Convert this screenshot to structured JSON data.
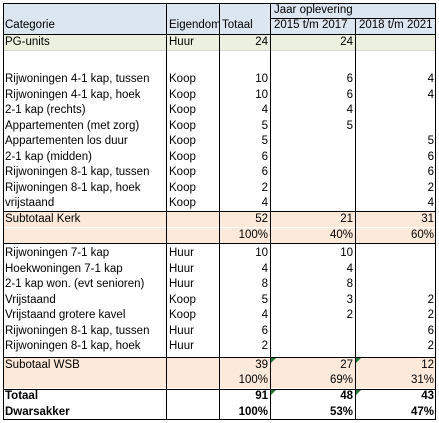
{
  "header": {
    "col_categorie": "Categorie",
    "col_eigendom": "Eigendom",
    "col_totaal": "Totaal",
    "group_label": "Jaar oplevering",
    "col_y1": "2015 t/m 2017",
    "col_y2": "2018 t/m 2021"
  },
  "pg_row": {
    "cat": "PG-units",
    "eig": "Huur",
    "tot": "24",
    "y1": "24",
    "y2": ""
  },
  "kerk_rows": [
    {
      "cat": "Rijwoningen 4-1 kap, tussen",
      "eig": "Koop",
      "tot": "10",
      "y1": "6",
      "y2": "4"
    },
    {
      "cat": "Rijwoningen 4-1 kap,  hoek",
      "eig": "Koop",
      "tot": "10",
      "y1": "6",
      "y2": "4"
    },
    {
      "cat": "2-1 kap (rechts)",
      "eig": "Koop",
      "tot": "4",
      "y1": "4",
      "y2": ""
    },
    {
      "cat": "Appartementen (met zorg)",
      "eig": "Koop",
      "tot": "5",
      "y1": "5",
      "y2": ""
    },
    {
      "cat": "Appartementen los  duur",
      "eig": "Koop",
      "tot": "5",
      "y1": "",
      "y2": "5"
    },
    {
      "cat": "2-1 kap (midden)",
      "eig": "Koop",
      "tot": "6",
      "y1": "",
      "y2": "6"
    },
    {
      "cat": "Rijwoningen 8-1 kap, tussen",
      "eig": "Koop",
      "tot": "6",
      "y1": "",
      "y2": "6"
    },
    {
      "cat": "Rijwoningen 8-1 kap, hoek",
      "eig": "Koop",
      "tot": "2",
      "y1": "",
      "y2": "2"
    },
    {
      "cat": "vrijstaand",
      "eig": "Koop",
      "tot": "4",
      "y1": "",
      "y2": "4"
    }
  ],
  "sub_kerk": {
    "cat": "Subtotaal Kerk",
    "tot": "52",
    "y1": "21",
    "y2": "31",
    "tot_pct": "100%",
    "y1_pct": "40%",
    "y2_pct": "60%"
  },
  "wsb_rows": [
    {
      "cat": "Rijwoningen 7-1 kap",
      "eig": "Huur",
      "tot": "10",
      "y1": "10",
      "y2": ""
    },
    {
      "cat": "Hoekwoningen 7-1 kap",
      "eig": "Huur",
      "tot": "4",
      "y1": "4",
      "y2": ""
    },
    {
      "cat": "2-1 kap  won. (evt senioren)",
      "eig": "Huur",
      "tot": "8",
      "y1": "8",
      "y2": ""
    },
    {
      "cat": "Vrijstaand",
      "eig": "Koop",
      "tot": "5",
      "y1": "3",
      "y2": "2"
    },
    {
      "cat": "Vrijstaand grotere kavel",
      "eig": "Koop",
      "tot": "4",
      "y1": "2",
      "y2": "2"
    },
    {
      "cat": "Rijwoningen 8-1 kap, tussen",
      "eig": "Huur",
      "tot": "6",
      "y1": "",
      "y2": "6"
    },
    {
      "cat": "Rijwoningen 8-1 kap, hoek",
      "eig": "Huur",
      "tot": "2",
      "y1": "",
      "y2": "2"
    }
  ],
  "sub_wsb": {
    "cat": "Subotaal WSB",
    "tot": "39",
    "y1": "27",
    "y2": "12",
    "tot_pct": "100%",
    "y1_pct": "69%",
    "y2_pct": "31%"
  },
  "totaal": {
    "cat": "Totaal",
    "tot": "91",
    "y1": "48",
    "y2": "43"
  },
  "dwarsakker": {
    "cat": "Dwarsakker",
    "tot": "100%",
    "y1": "53%",
    "y2": "47%"
  },
  "colors": {
    "header_bg": "#dce6f1",
    "pg_bg": "#ebf1de",
    "subtotal_bg": "#fde9d9",
    "error_marker": "#1e7b34"
  }
}
